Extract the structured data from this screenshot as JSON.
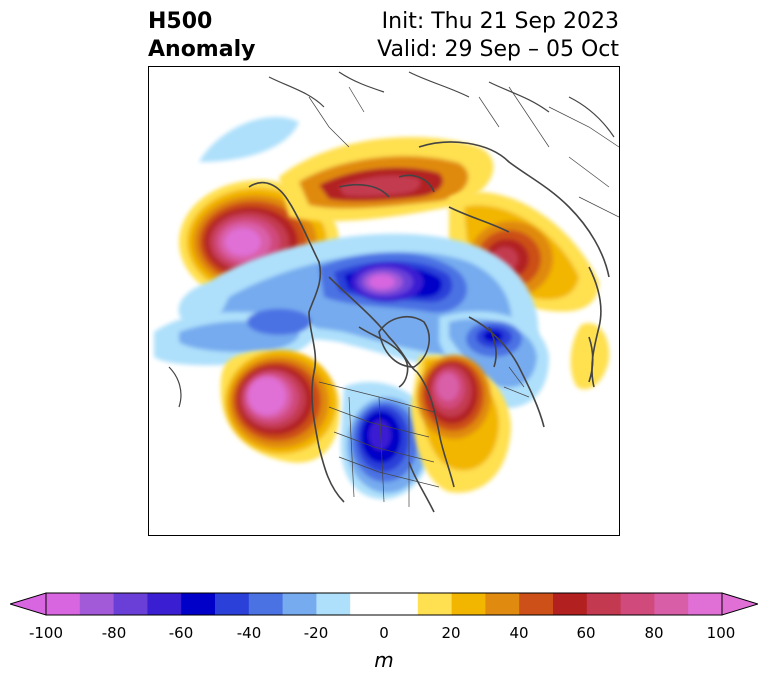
{
  "title": {
    "left_line1": "H500",
    "left_line2": "Anomaly",
    "right_line1": "Init: Thu 21 Sep 2023",
    "right_line2": "Valid: 29 Sep – 05 Oct"
  },
  "colorbar": {
    "ticks": [
      "-100",
      "-80",
      "-60",
      "-40",
      "-20",
      "0",
      "20",
      "40",
      "60",
      "80",
      "100"
    ],
    "unit": "m",
    "colors": [
      "#d766e0",
      "#a35ad9",
      "#6a3fd8",
      "#3a1fd2",
      "#0000c8",
      "#2a40d8",
      "#4b72e3",
      "#76abef",
      "#aee0fb",
      "#ffffff",
      "#ffffff",
      "#ffe050",
      "#f2b600",
      "#e08a10",
      "#cc5018",
      "#b22020",
      "#c33a50",
      "#d04a7c",
      "#d95ea8",
      "#e070d6"
    ]
  },
  "map": {
    "projection": "north-polar-stereographic",
    "field_colors": {
      "strong_positive": "#e070d6",
      "positive": "#b22020",
      "weak_positive": "#ffe050",
      "strong_negative": "#d766e0",
      "negative": "#0000c8",
      "weak_negative": "#aee0fb"
    }
  }
}
